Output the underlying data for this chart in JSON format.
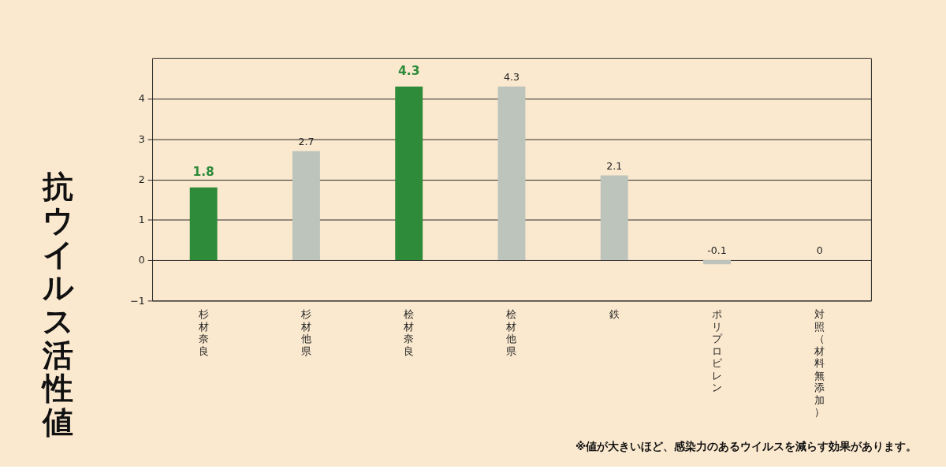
{
  "chart_data": {
    "type": "bar",
    "ylabel": "抗ウイルス活性値",
    "categories": [
      "杉材奈良",
      "杉材他県",
      "桧材奈良",
      "桧材他県",
      "鉄",
      "ポリプロピレン",
      "対照（材料無添加）"
    ],
    "values": [
      1.8,
      2.7,
      4.3,
      4.3,
      2.1,
      -0.1,
      0
    ],
    "colors": [
      "#2e8b3a",
      "#bcc4bc",
      "#2e8b3a",
      "#bcc4bc",
      "#bcc4bc",
      "#bcc4bc",
      "#bcc4bc"
    ],
    "ylim": [
      -1,
      5
    ],
    "yticks": [
      -1,
      0,
      1,
      2,
      3,
      4
    ],
    "grid": "y",
    "data_labels": true,
    "annotations": [
      "※値が大きいほど、感染力のあるウイルスを減らす効果があります。"
    ]
  }
}
